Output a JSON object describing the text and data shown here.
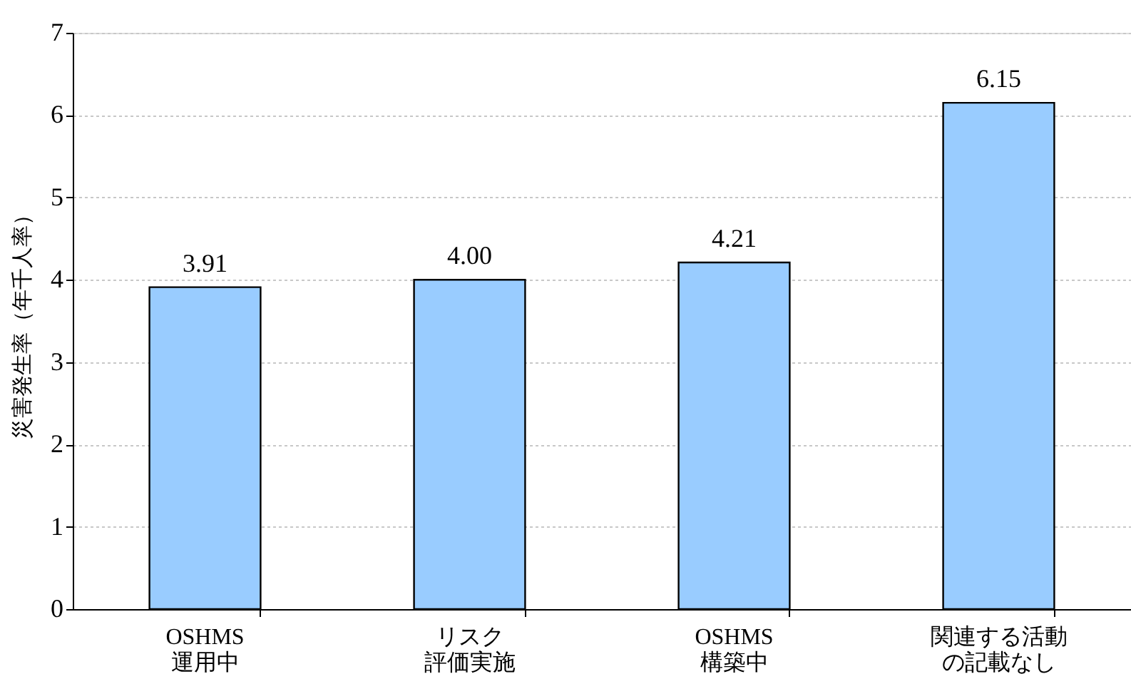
{
  "chart_data": {
    "type": "bar",
    "categories": [
      "OSHMS運用中",
      "リスク評価実施",
      "OSHMS構築中",
      "関連する活動の記載なし"
    ],
    "values": [
      3.91,
      4.0,
      4.21,
      6.15
    ],
    "value_labels": [
      "3.91",
      "4.00",
      "4.21",
      "6.15"
    ],
    "color": "#99ccff",
    "ylabel": "災害発生率（年千人率）",
    "ylim": [
      0,
      7
    ],
    "yticks": [
      0,
      1,
      2,
      3,
      4,
      5,
      6,
      7
    ],
    "grid": "y"
  }
}
